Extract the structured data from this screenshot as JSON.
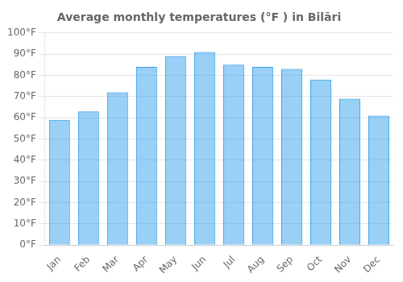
{
  "chart_data": {
    "type": "bar",
    "title": "Average monthly temperatures (°F ) in Bilāri",
    "categories": [
      "Jan",
      "Feb",
      "Mar",
      "Apr",
      "May",
      "Jun",
      "Jul",
      "Aug",
      "Sep",
      "Oct",
      "Nov",
      "Dec"
    ],
    "values": [
      59,
      63,
      72,
      84,
      89,
      91,
      85,
      84,
      83,
      78,
      69,
      61
    ],
    "ylim": [
      0,
      100
    ],
    "yticks": [
      {
        "value": 0,
        "label": "0°F"
      },
      {
        "value": 10,
        "label": "10°F"
      },
      {
        "value": 20,
        "label": "20°F"
      },
      {
        "value": 30,
        "label": "30°F"
      },
      {
        "value": 40,
        "label": "40°F"
      },
      {
        "value": 50,
        "label": "50°F"
      },
      {
        "value": 60,
        "label": "60°F"
      },
      {
        "value": 70,
        "label": "70°F"
      },
      {
        "value": 80,
        "label": "80°F"
      },
      {
        "value": 90,
        "label": "90°F"
      },
      {
        "value": 100,
        "label": "100°F"
      }
    ],
    "grid": true
  }
}
